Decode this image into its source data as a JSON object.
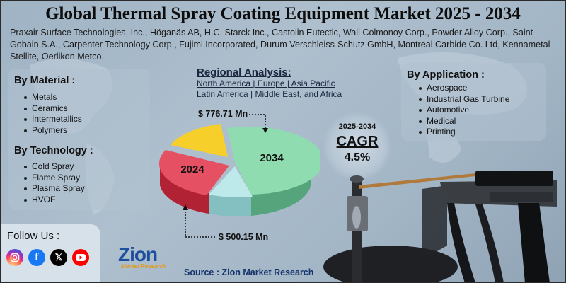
{
  "title": "Global Thermal Spray Coating Equipment Market 2025 - 2034",
  "companies": "Praxair Surface Technologies, Inc., Höganäs AB, H.C. Starck Inc., Castolin Eutectic, Wall Colmonoy Corp., Powder Alloy Corp., Saint-Gobain S.A., Carpenter Technology Corp., Fujimi Incorporated, Durum Verschleiss-Schutz GmbH, Montreal Carbide Co. Ltd, Kennametal Stellite, Oerlikon Metco.",
  "by_material": {
    "heading": "By Material :",
    "items": [
      "Metals",
      "Ceramics",
      "Intermetallics",
      "Polymers"
    ]
  },
  "by_technology": {
    "heading": "By Technology :",
    "items": [
      "Cold Spray",
      "Flame Spray",
      "Plasma Spray",
      "HVOF"
    ]
  },
  "by_application": {
    "heading": "By Application :",
    "items": [
      "Aerospace",
      "Industrial Gas Turbine",
      "Automotive",
      "Medical",
      "Printing"
    ]
  },
  "regional": {
    "heading": "Regional Analysis:",
    "line1": "North America | Europe | Asia Pacific",
    "line2": "Latin America | Middle East, and Africa"
  },
  "pie": {
    "label_2034": "2034",
    "label_2024": "2024",
    "value_2034": "$ 776.71 Mn",
    "value_2024": "$  500.15 Mn"
  },
  "cagr": {
    "period": "2025-2034",
    "label": "CAGR",
    "value": "4.5%"
  },
  "follow": {
    "title": "Follow Us :"
  },
  "source": "Source : Zion Market Research",
  "logo": {
    "word": "Zion",
    "sub": "Market Research"
  },
  "colors": {
    "slice_green": "#8fdcb1",
    "slice_red": "#e55162",
    "slice_yellow": "#f6cf2b",
    "slice_cyan": "#bde9ea"
  }
}
